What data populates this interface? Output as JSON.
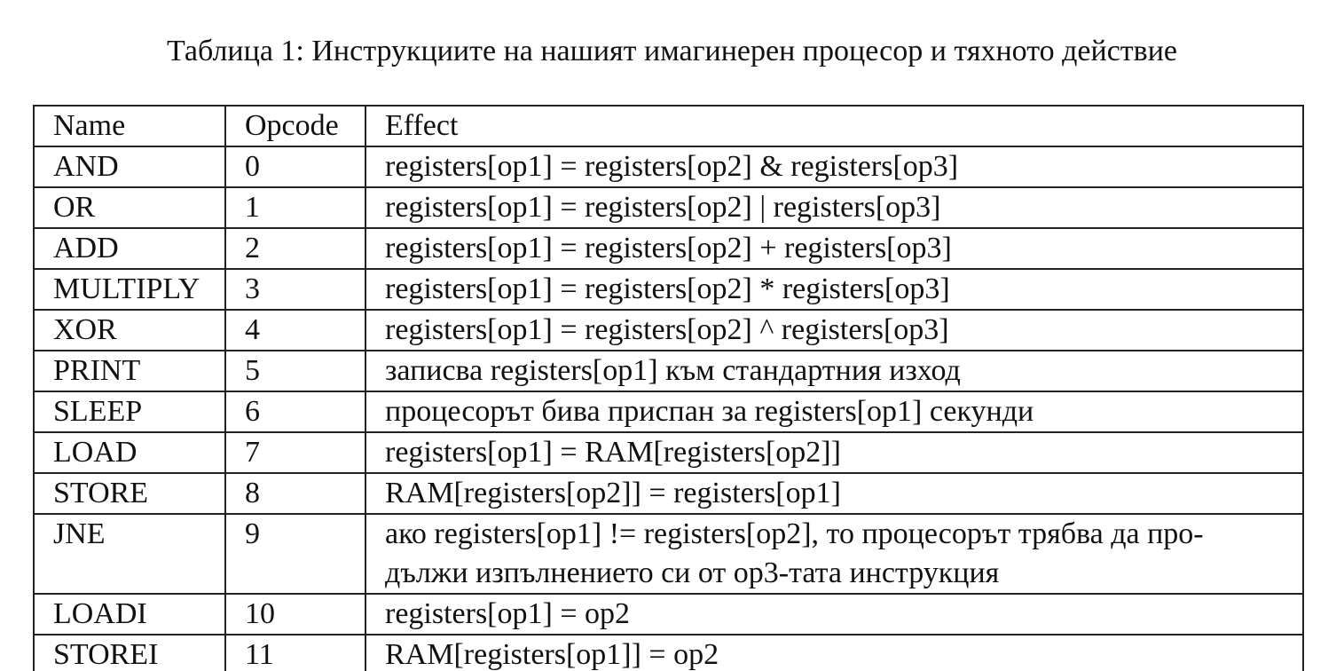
{
  "caption": "Таблица 1: Инструкциите на нашият имагинерен процесор и тяхното действие",
  "table": {
    "headers": [
      "Name",
      "Opcode",
      "Effect"
    ],
    "rows": [
      {
        "name": "AND",
        "opcode": "0",
        "effect": "registers[op1] = registers[op2] & registers[op3]"
      },
      {
        "name": "OR",
        "opcode": "1",
        "effect": "registers[op1] = registers[op2] | registers[op3]"
      },
      {
        "name": "ADD",
        "opcode": "2",
        "effect": "registers[op1] = registers[op2] + registers[op3]"
      },
      {
        "name": "MULTIPLY",
        "opcode": "3",
        "effect": "registers[op1] = registers[op2] * registers[op3]"
      },
      {
        "name": "XOR",
        "opcode": "4",
        "effect": "registers[op1] = registers[op2] ^ registers[op3]"
      },
      {
        "name": "PRINT",
        "opcode": "5",
        "effect": "записва registers[op1] към стандартния изход"
      },
      {
        "name": "SLEEP",
        "opcode": "6",
        "effect": "процесорът бива приспан за registers[op1] секунди"
      },
      {
        "name": "LOAD",
        "opcode": "7",
        "effect": "registers[op1] = RAM[registers[op2]]"
      },
      {
        "name": "STORE",
        "opcode": "8",
        "effect": "RAM[registers[op2]] = registers[op1]"
      },
      {
        "name": "JNE",
        "opcode": "9",
        "effect_line1": "ако registers[op1] != registers[op2], то процесорът трябва да про-",
        "effect_line2": "дължи изпълнението си от op3-тата инструкция"
      },
      {
        "name": "LOADI",
        "opcode": "10",
        "effect": "registers[op1] = op2"
      },
      {
        "name": "STOREI",
        "opcode": "11",
        "effect": "RAM[registers[op1]] = op2"
      }
    ]
  }
}
